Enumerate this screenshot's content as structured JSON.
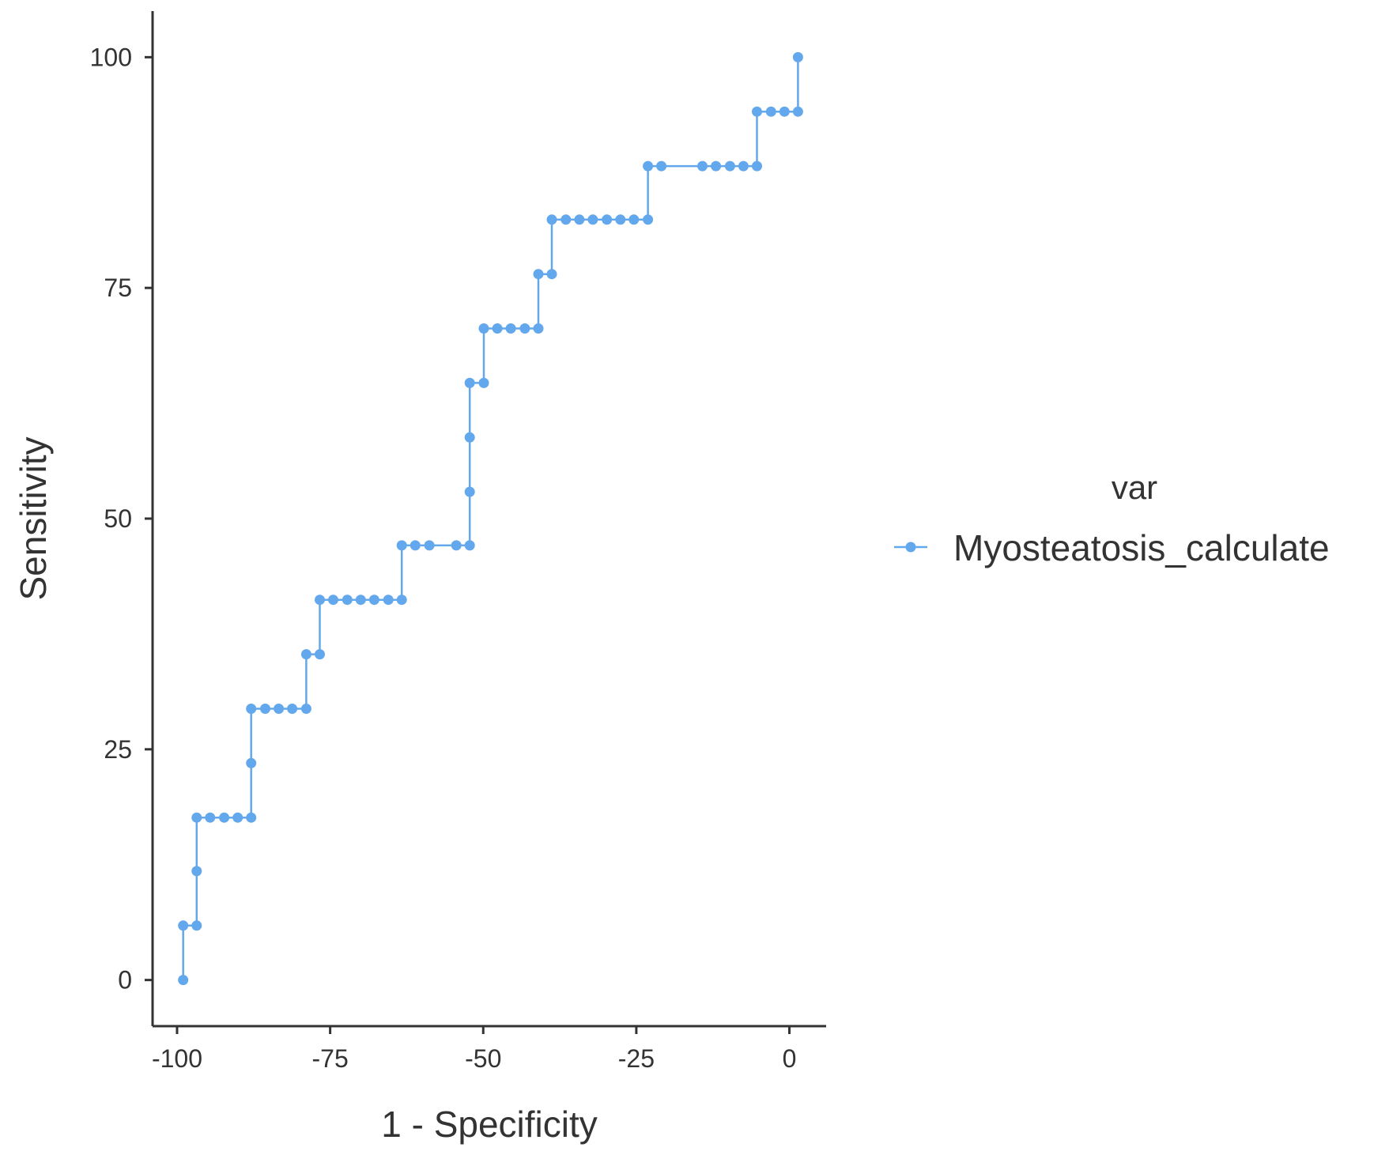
{
  "chart_data": {
    "type": "line",
    "title": "",
    "xlabel": "1 - Specificity",
    "ylabel": "Sensitivity",
    "xlim": [
      -104,
      6
    ],
    "ylim": [
      -5,
      105
    ],
    "xticks": [
      -100,
      -75,
      -50,
      -25,
      0
    ],
    "xtick_labels": [
      "-100",
      "-75",
      "-50",
      "-25",
      "0"
    ],
    "yticks": [
      0,
      25,
      50,
      75,
      100
    ],
    "ytick_labels": [
      "0",
      "25",
      "50",
      "75",
      "100"
    ],
    "grid": false,
    "legend": {
      "title": "var",
      "placement": "right",
      "entries": [
        "Myosteatosis_calculate"
      ]
    },
    "series": [
      {
        "name": "Myosteatosis_calculate",
        "color": "#63a8ec",
        "step": true,
        "points": [
          [
            -99.0,
            0
          ],
          [
            -99.0,
            5.9
          ],
          [
            -96.8,
            5.9
          ],
          [
            -96.8,
            11.8
          ],
          [
            -96.8,
            17.6
          ],
          [
            -94.6,
            17.6
          ],
          [
            -92.3,
            17.6
          ],
          [
            -90.1,
            17.6
          ],
          [
            -87.9,
            17.6
          ],
          [
            -87.9,
            23.5
          ],
          [
            -87.9,
            29.4
          ],
          [
            -85.6,
            29.4
          ],
          [
            -83.4,
            29.4
          ],
          [
            -81.2,
            29.4
          ],
          [
            -78.9,
            29.4
          ],
          [
            -78.9,
            35.3
          ],
          [
            -76.7,
            35.3
          ],
          [
            -76.7,
            41.2
          ],
          [
            -74.5,
            41.2
          ],
          [
            -72.2,
            41.2
          ],
          [
            -70.0,
            41.2
          ],
          [
            -67.8,
            41.2
          ],
          [
            -65.5,
            41.2
          ],
          [
            -63.3,
            41.2
          ],
          [
            -63.3,
            47.1
          ],
          [
            -61.1,
            47.1
          ],
          [
            -58.8,
            47.1
          ],
          [
            -54.4,
            47.1
          ],
          [
            -52.2,
            47.1
          ],
          [
            -52.2,
            52.9
          ],
          [
            -52.2,
            58.8
          ],
          [
            -52.2,
            64.7
          ],
          [
            -49.9,
            64.7
          ],
          [
            -49.9,
            70.6
          ],
          [
            -47.7,
            70.6
          ],
          [
            -45.5,
            70.6
          ],
          [
            -43.2,
            70.6
          ],
          [
            -41.0,
            70.6
          ],
          [
            -41.0,
            76.5
          ],
          [
            -38.8,
            76.5
          ],
          [
            -38.8,
            82.4
          ],
          [
            -36.5,
            82.4
          ],
          [
            -34.3,
            82.4
          ],
          [
            -32.1,
            82.4
          ],
          [
            -29.8,
            82.4
          ],
          [
            -27.6,
            82.4
          ],
          [
            -25.4,
            82.4
          ],
          [
            -23.1,
            82.4
          ],
          [
            -23.1,
            88.2
          ],
          [
            -20.9,
            88.2
          ],
          [
            -14.2,
            88.2
          ],
          [
            -12.0,
            88.2
          ],
          [
            -9.7,
            88.2
          ],
          [
            -7.5,
            88.2
          ],
          [
            -5.3,
            88.2
          ],
          [
            -5.3,
            94.1
          ],
          [
            -3.0,
            94.1
          ],
          [
            -0.8,
            94.1
          ],
          [
            1.4,
            94.1
          ],
          [
            1.4,
            100
          ]
        ]
      }
    ]
  }
}
